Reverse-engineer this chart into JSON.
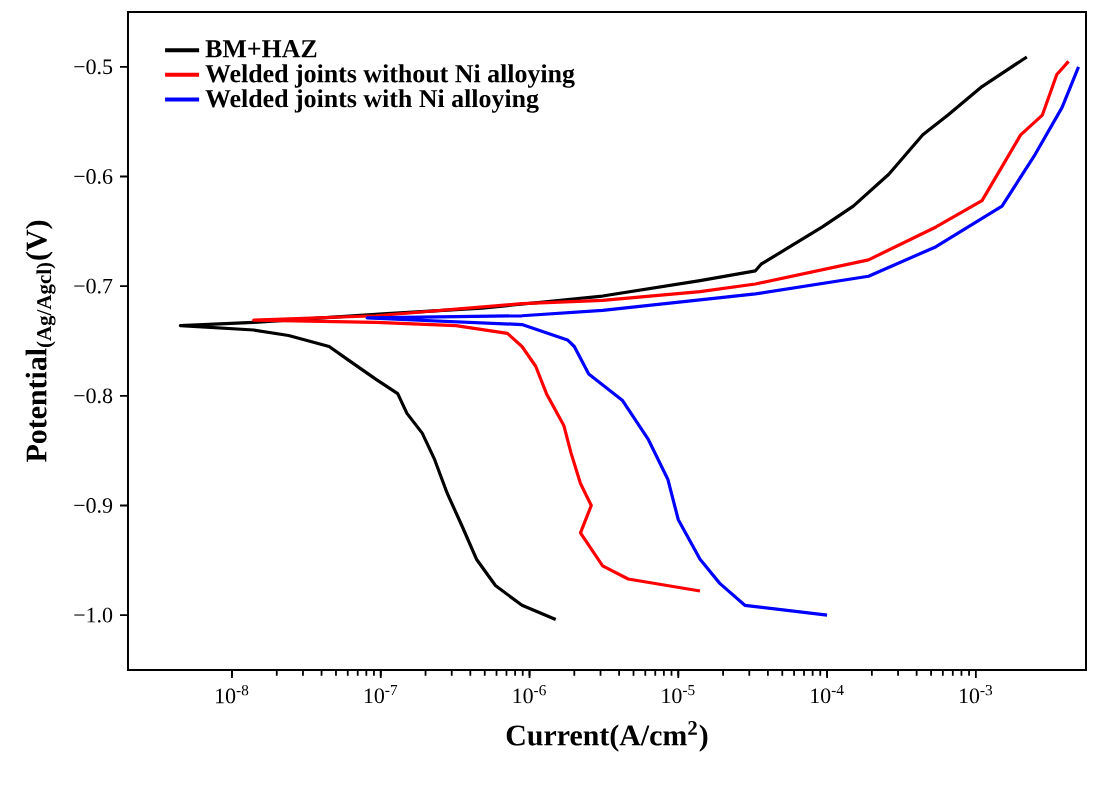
{
  "chart_data": {
    "type": "line",
    "xlabel": "Current(A/cm$^{2}$)",
    "ylabel": "Potential$_{(Ag/Agcl)}$(V)",
    "log": "x",
    "legend": "top left",
    "marker": "none",
    "line_style": "solid",
    "grid": false,
    "xlim": [
      2e-09,
      0.0055
    ],
    "ylim": [
      -1.05,
      -0.45
    ],
    "xticks": [
      {
        "value": 1e-08,
        "label": "10$^{-8}$"
      },
      {
        "value": 1e-07,
        "label": "10$^{-7}$"
      },
      {
        "value": 1e-06,
        "label": "10$^{-6}$"
      },
      {
        "value": 1e-05,
        "label": "10$^{-5}$"
      },
      {
        "value": 0.0001,
        "label": "10$^{-4}$"
      },
      {
        "value": 0.001,
        "label": "10$^{-3}$"
      }
    ],
    "yticks": [
      {
        "value": -1.0,
        "label": "−1.0"
      },
      {
        "value": -0.9,
        "label": "−0.9"
      },
      {
        "value": -0.8,
        "label": "−0.8"
      },
      {
        "value": -0.7,
        "label": "−0.7"
      },
      {
        "value": -0.6,
        "label": "−0.6"
      },
      {
        "value": -0.5,
        "label": "−0.5"
      }
    ],
    "series": [
      {
        "name": "BM+HAZ",
        "color": "#000000",
        "x": [
          1.5e-06,
          8.9e-07,
          5.9e-07,
          4.4e-07,
          3.5e-07,
          2.8e-07,
          2.3e-07,
          1.9e-07,
          1.5e-07,
          1.3e-07,
          9.3e-08,
          6e-08,
          4.5e-08,
          2.4e-08,
          1.4e-08,
          4.5e-09,
          1.4e-08,
          1.1e-07,
          4.8e-07,
          3.1e-06,
          1.4e-05,
          3.3e-05,
          3.6e-05,
          9.3e-05,
          0.00015,
          0.00026,
          0.00044,
          0.00065,
          0.0011,
          0.0022
        ],
        "values": [
          -1.004,
          -0.991,
          -0.973,
          -0.949,
          -0.918,
          -0.889,
          -0.858,
          -0.834,
          -0.816,
          -0.798,
          -0.785,
          -0.767,
          -0.755,
          -0.745,
          -0.74,
          -0.736,
          -0.733,
          -0.725,
          -0.72,
          -0.709,
          -0.695,
          -0.686,
          -0.68,
          -0.646,
          -0.627,
          -0.598,
          -0.562,
          -0.544,
          -0.518,
          -0.491
        ]
      },
      {
        "name": "Welded joints without Ni alloying",
        "color": "#ff0000",
        "x": [
          1.4e-05,
          4.6e-06,
          3.1e-06,
          2.2e-06,
          2.6e-06,
          2.2e-06,
          1.9e-06,
          1.7e-06,
          1.3e-06,
          1.1e-06,
          8.9e-07,
          7.1e-07,
          3.2e-07,
          9.3e-08,
          1.4e-08,
          9.3e-08,
          8.9e-07,
          3.1e-06,
          1.4e-05,
          3.3e-05,
          0.00019,
          0.00054,
          0.0011,
          0.0015,
          0.002,
          0.0028,
          0.0035,
          0.0042
        ],
        "values": [
          -0.978,
          -0.967,
          -0.955,
          -0.925,
          -0.9,
          -0.88,
          -0.852,
          -0.827,
          -0.798,
          -0.773,
          -0.755,
          -0.743,
          -0.736,
          -0.733,
          -0.731,
          -0.727,
          -0.716,
          -0.713,
          -0.705,
          -0.698,
          -0.676,
          -0.646,
          -0.622,
          -0.591,
          -0.562,
          -0.544,
          -0.507,
          -0.495
        ]
      },
      {
        "name": "Welded joints with Ni alloying",
        "color": "#0000ff",
        "x": [
          0.0001,
          2.8e-05,
          1.9e-05,
          1.4e-05,
          1e-05,
          8.5e-06,
          6.3e-06,
          4.2e-06,
          2.5e-06,
          2e-06,
          1.8e-06,
          8.9e-07,
          8.1e-08,
          8.9e-07,
          3.1e-06,
          3.3e-05,
          0.00019,
          0.00054,
          0.0015,
          0.0025,
          0.0038,
          0.0049
        ],
        "values": [
          -1.0,
          -0.991,
          -0.971,
          -0.949,
          -0.913,
          -0.876,
          -0.84,
          -0.804,
          -0.78,
          -0.755,
          -0.749,
          -0.735,
          -0.729,
          -0.727,
          -0.722,
          -0.707,
          -0.691,
          -0.664,
          -0.627,
          -0.58,
          -0.537,
          -0.5
        ]
      }
    ]
  }
}
